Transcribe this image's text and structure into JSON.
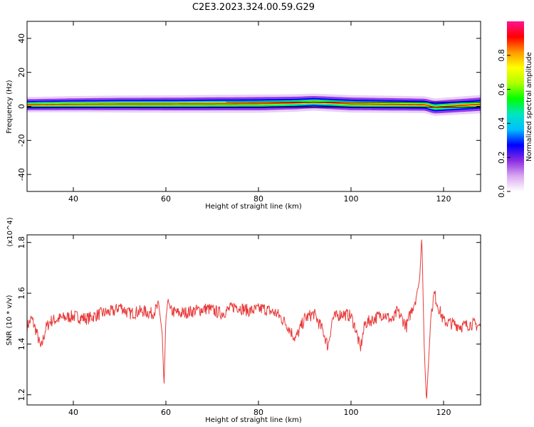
{
  "title": "C2E3.2023.324.00.59.G29",
  "colors": {
    "snr_line": "#e83a3a",
    "axes": "#000000",
    "colormap": [
      "#ffffff",
      "#d9a8f0",
      "#8a2be2",
      "#0000ff",
      "#00bfff",
      "#00e5c0",
      "#00ff00",
      "#b0ff00",
      "#ffff00",
      "#ff9900",
      "#ff0000",
      "#ff1493"
    ]
  },
  "chart_data": [
    {
      "type": "heatmap",
      "name": "spectrogram",
      "xlabel": "Height of straight line (km)",
      "ylabel": "Frequency (Hz)",
      "xlim": [
        30,
        128
      ],
      "ylim": [
        -50,
        50
      ],
      "xticks": [
        40,
        60,
        80,
        100,
        120
      ],
      "yticks": [
        -40,
        -20,
        0,
        20,
        40
      ],
      "colorbar": {
        "label": "Normalized spectral amplitude",
        "range": [
          0,
          1
        ],
        "ticks": [
          0.0,
          0.2,
          0.4,
          0.6,
          0.8
        ]
      },
      "description_points": [
        {
          "height_km": 30,
          "freq_hz": 1.0,
          "amp": 0.6
        },
        {
          "height_km": 40,
          "freq_hz": 1.3,
          "amp": 0.7
        },
        {
          "height_km": 50,
          "freq_hz": 1.4,
          "amp": 0.8
        },
        {
          "height_km": 60,
          "freq_hz": 1.4,
          "amp": 0.85
        },
        {
          "height_km": 70,
          "freq_hz": 1.5,
          "amp": 0.9
        },
        {
          "height_km": 80,
          "freq_hz": 1.6,
          "amp": 0.95
        },
        {
          "height_km": 88,
          "freq_hz": 2.0,
          "amp": 0.85
        },
        {
          "height_km": 92,
          "freq_hz": 2.5,
          "amp": 0.8
        },
        {
          "height_km": 100,
          "freq_hz": 1.5,
          "amp": 0.85
        },
        {
          "height_km": 110,
          "freq_hz": 1.2,
          "amp": 0.8
        },
        {
          "height_km": 116,
          "freq_hz": 1.0,
          "amp": 0.75
        },
        {
          "height_km": 118,
          "freq_hz": -0.5,
          "amp": 0.85
        },
        {
          "height_km": 128,
          "freq_hz": 1.3,
          "amp": 0.95
        }
      ]
    },
    {
      "type": "line",
      "name": "snr",
      "xlabel": "Height of straight line (km)",
      "ylabel": "SNR (10 * v/v)",
      "y_multiplier": "(x10^4)",
      "xlim": [
        30,
        128
      ],
      "ylim": [
        1.16,
        1.83
      ],
      "xticks": [
        40,
        60,
        80,
        100,
        120
      ],
      "yticks": [
        1.2,
        1.4,
        1.6,
        1.8
      ],
      "x": [
        30,
        31,
        32,
        33,
        34,
        35,
        37,
        40,
        43,
        46,
        49,
        50,
        52,
        55,
        57,
        58.5,
        59.2,
        59.6,
        60,
        60.5,
        61,
        63,
        66,
        69,
        72,
        75,
        78,
        81,
        84,
        86,
        88,
        90,
        92,
        94,
        95,
        96,
        98,
        100,
        101,
        102,
        103,
        105,
        107,
        109,
        110,
        111,
        112,
        113,
        114,
        114.8,
        115.3,
        115.8,
        116.3,
        116.8,
        117.3,
        118,
        118.8,
        120,
        122,
        124,
        126,
        128
      ],
      "y": [
        1.47,
        1.5,
        1.45,
        1.38,
        1.46,
        1.49,
        1.5,
        1.51,
        1.5,
        1.52,
        1.53,
        1.55,
        1.52,
        1.53,
        1.52,
        1.55,
        1.44,
        1.23,
        1.5,
        1.58,
        1.53,
        1.52,
        1.53,
        1.54,
        1.52,
        1.55,
        1.53,
        1.54,
        1.52,
        1.48,
        1.42,
        1.5,
        1.52,
        1.45,
        1.39,
        1.5,
        1.52,
        1.51,
        1.46,
        1.38,
        1.48,
        1.5,
        1.52,
        1.49,
        1.53,
        1.5,
        1.47,
        1.53,
        1.58,
        1.65,
        1.83,
        1.4,
        1.17,
        1.35,
        1.52,
        1.6,
        1.55,
        1.49,
        1.48,
        1.47,
        1.48,
        1.47
      ]
    }
  ]
}
